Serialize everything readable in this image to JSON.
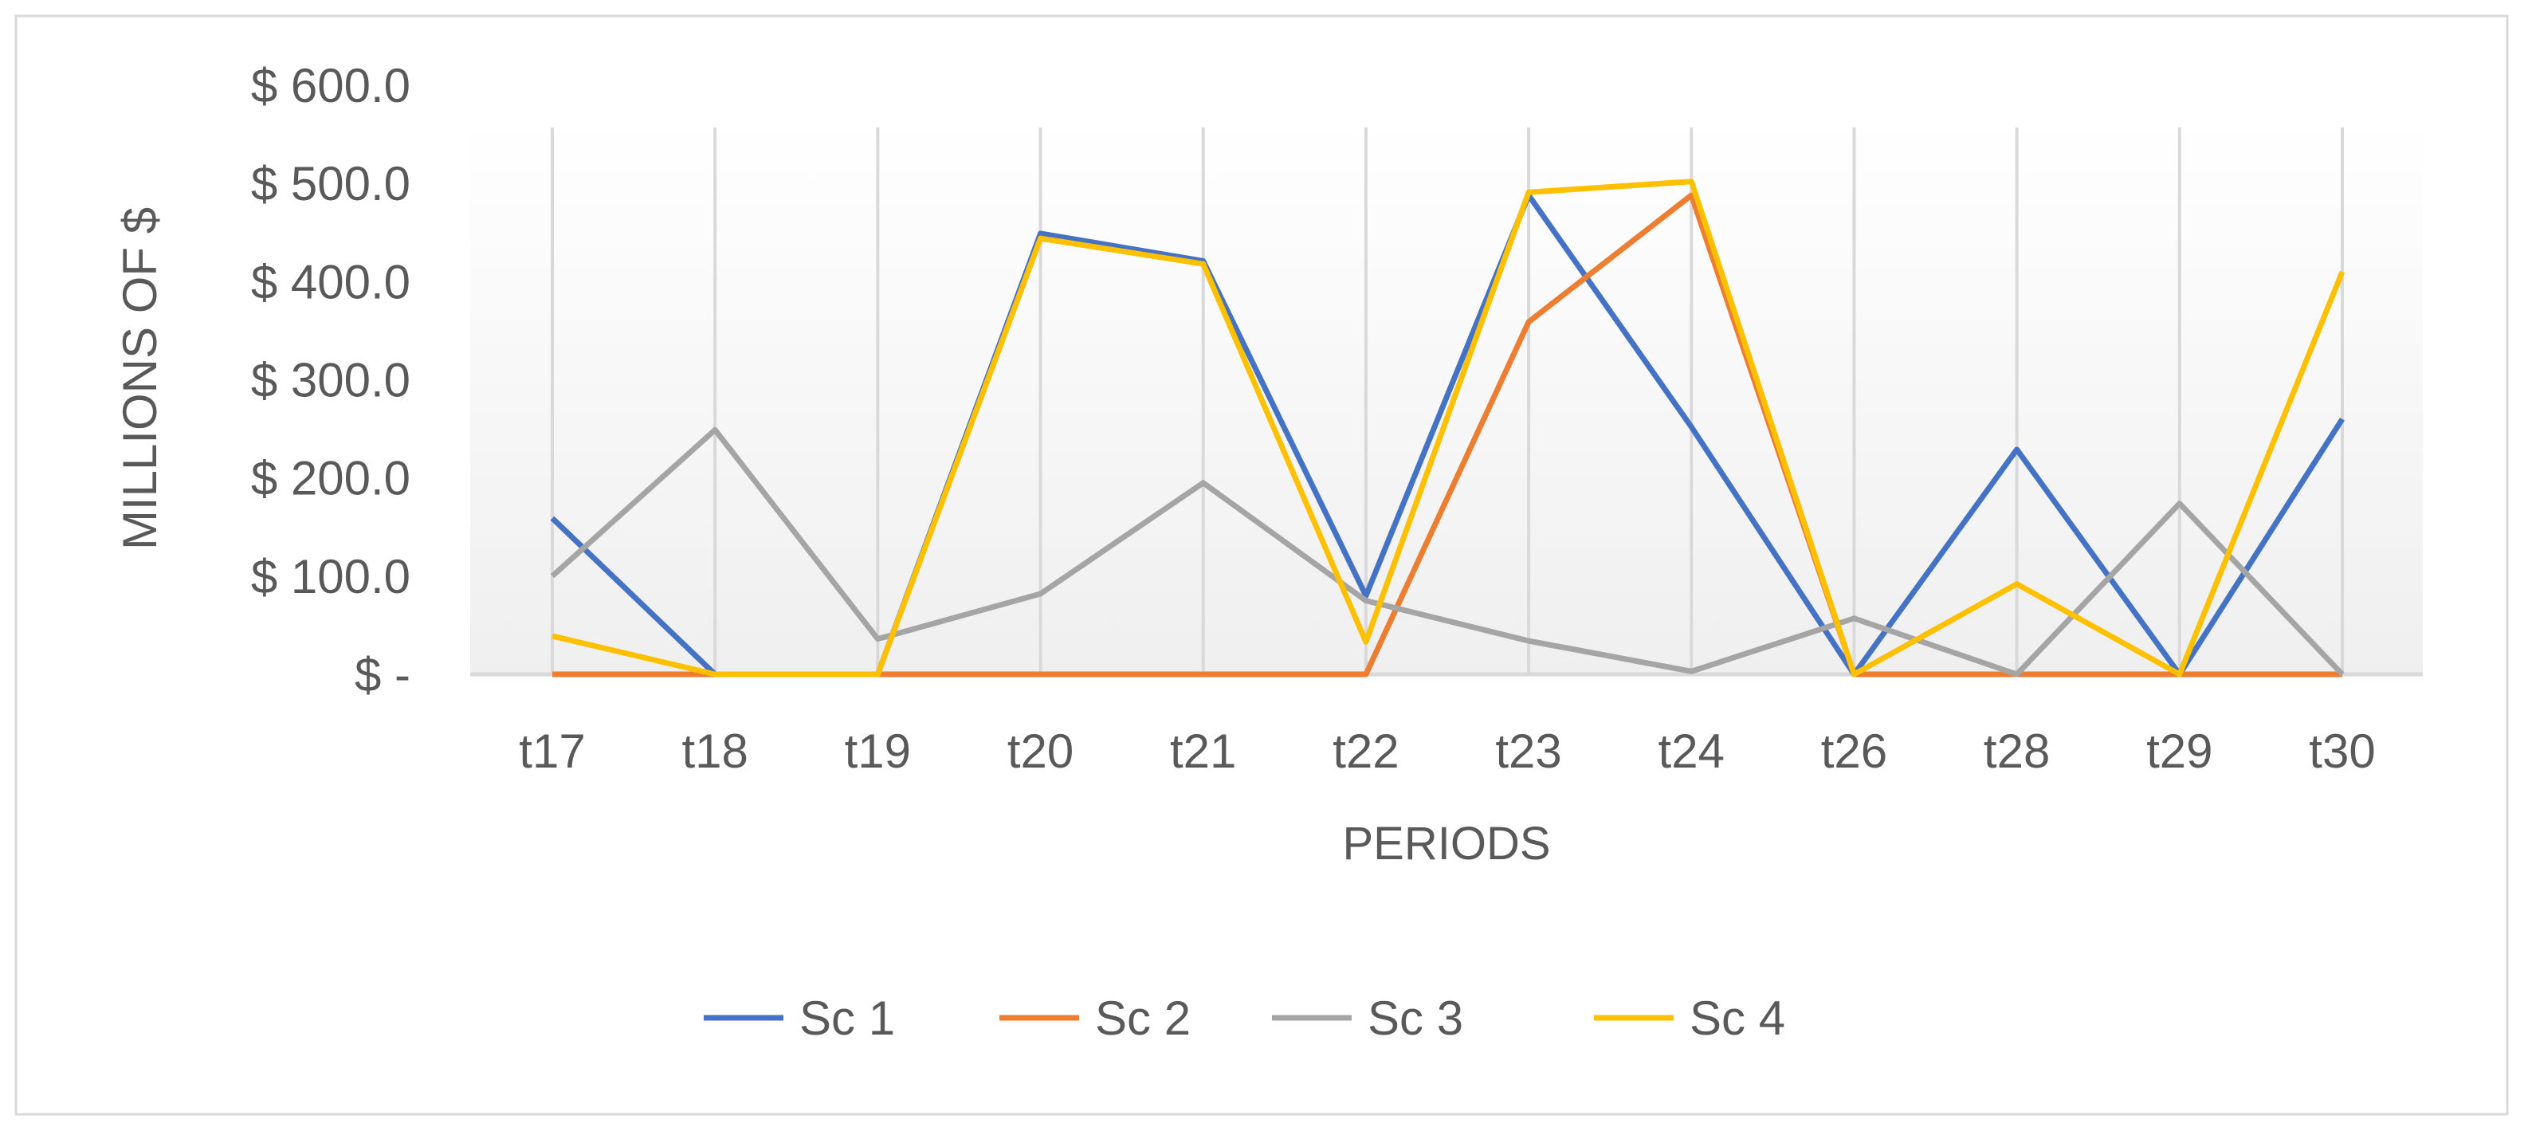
{
  "chart_data": {
    "type": "line",
    "title": "",
    "xlabel": "PERIODS",
    "ylabel": "MILLIONS OF $",
    "ylim": [
      0,
      600
    ],
    "y_ticks": [
      0,
      100,
      200,
      300,
      400,
      500,
      600
    ],
    "y_tick_labels": [
      "$ -",
      "$ 100.0",
      "$ 200.0",
      "$ 300.0",
      "$ 400.0",
      "$ 500.0",
      "$ 600.0"
    ],
    "categories": [
      "t17",
      "t18",
      "t19",
      "t20",
      "t21",
      "t22",
      "t23",
      "t24",
      "t26",
      "t28",
      "t29",
      "t30"
    ],
    "grid": "vertical",
    "legend_position": "bottom",
    "series": [
      {
        "name": "Sc 1",
        "color": "#4472C4",
        "values": [
          159,
          0,
          0,
          449,
          421,
          80,
          488,
          252,
          0,
          229,
          0,
          260
        ]
      },
      {
        "name": "Sc 2",
        "color": "#ED7D31",
        "values": [
          0,
          0,
          0,
          0,
          0,
          0,
          359,
          488,
          0,
          0,
          0,
          0
        ]
      },
      {
        "name": "Sc 3",
        "color": "#A5A5A5",
        "values": [
          100,
          249,
          36,
          82,
          195,
          75,
          34,
          3,
          57,
          0,
          174,
          0
        ]
      },
      {
        "name": "Sc 4",
        "color": "#FFC000",
        "values": [
          39,
          0,
          0,
          444,
          418,
          33,
          491,
          502,
          0,
          92,
          0,
          410
        ]
      }
    ]
  }
}
